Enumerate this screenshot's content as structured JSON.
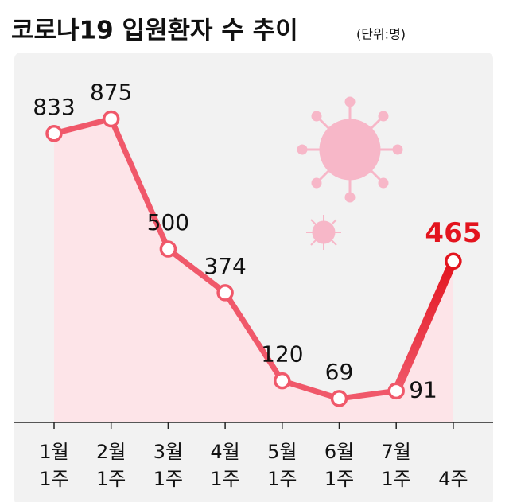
{
  "chart_data": {
    "type": "line",
    "title": "코로나19 입원환자 수 추이",
    "subtitle": "(단위:명)",
    "categories": [
      "1월\n1주",
      "2월\n1주",
      "3월\n1주",
      "4월\n1주",
      "5월\n1주",
      "6월\n1주",
      "7월\n1주",
      "4주"
    ],
    "values": [
      833,
      875,
      500,
      374,
      120,
      69,
      91,
      465
    ],
    "color": "#f0586a",
    "highlight_color": "#e3141e",
    "area_color": "#fde4e8",
    "ylim": [
      0,
      1000
    ]
  }
}
